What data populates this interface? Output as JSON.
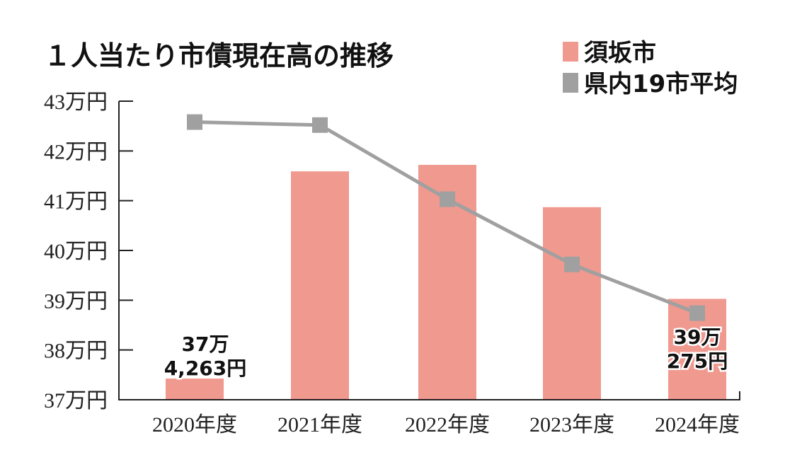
{
  "chart_data": {
    "type": "bar",
    "title": "１人当たり市債現在高の推移",
    "categories": [
      "2020年度",
      "2021年度",
      "2022年度",
      "2023年度",
      "2024年度"
    ],
    "y_ticks": [
      "37万円",
      "38万円",
      "39万円",
      "40万円",
      "41万円",
      "42万円",
      "43万円"
    ],
    "ylim": [
      370000,
      430000
    ],
    "unit": "円",
    "legend_position": "top-right",
    "grid": false,
    "series": [
      {
        "name": "須坂市",
        "type": "bar",
        "color": "#f0998f",
        "values": [
          374263,
          415900,
          417200,
          408700,
          390275
        ]
      },
      {
        "name": "県内19市平均",
        "type": "line",
        "color": "#a0a0a0",
        "values": [
          425800,
          425200,
          410300,
          397200,
          387400
        ]
      }
    ],
    "data_labels": [
      {
        "category": "2020年度",
        "lines": [
          "37万",
          "4,263円"
        ]
      },
      {
        "category": "2024年度",
        "lines": [
          "39万",
          "275円"
        ]
      }
    ]
  }
}
